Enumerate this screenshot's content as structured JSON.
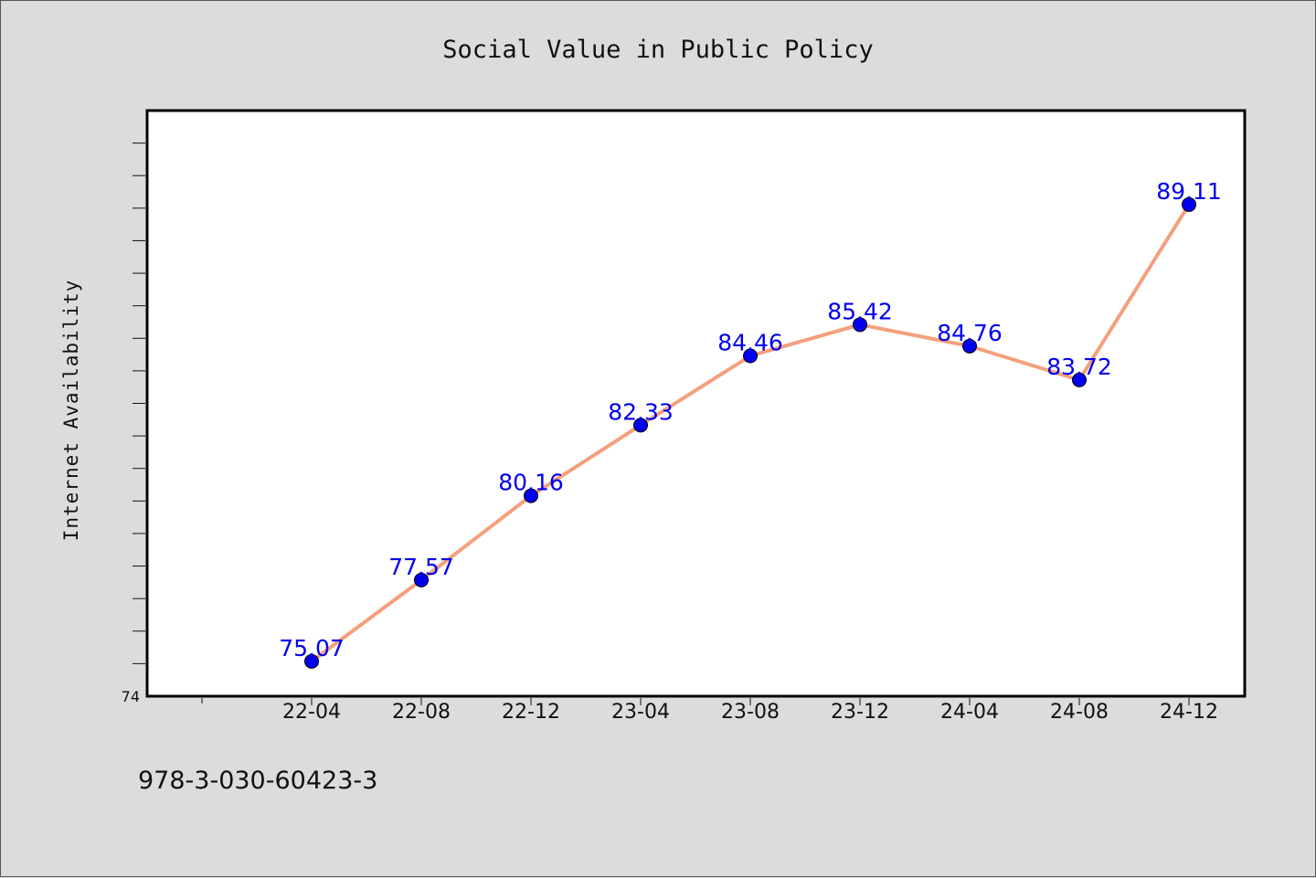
{
  "chart_data": {
    "type": "line",
    "title": "Social Value in Public Policy",
    "xlabel": "",
    "ylabel": "Internet Availability",
    "categories": [
      "22-04",
      "22-08",
      "22-12",
      "23-04",
      "23-08",
      "23-12",
      "24-04",
      "24-08",
      "24-12"
    ],
    "values": [
      75.07,
      77.57,
      80.16,
      82.33,
      84.46,
      85.42,
      84.76,
      83.72,
      89.11
    ],
    "data_labels": [
      "75.07",
      "77.57",
      "80.16",
      "82.33",
      "84.46",
      "85.42",
      "84.76",
      "83.72",
      "89.11"
    ],
    "ylim": [
      74,
      92
    ],
    "ytick_labels": [
      "74"
    ],
    "grid": false,
    "colors": {
      "line": "#f4a07e",
      "marker": "#0000ee",
      "data_label": "#0000ee",
      "plot_background": "#ffffff",
      "page_background": "#dcdcdc"
    }
  },
  "footer": {
    "isbn": "978-3-030-60423-3"
  }
}
